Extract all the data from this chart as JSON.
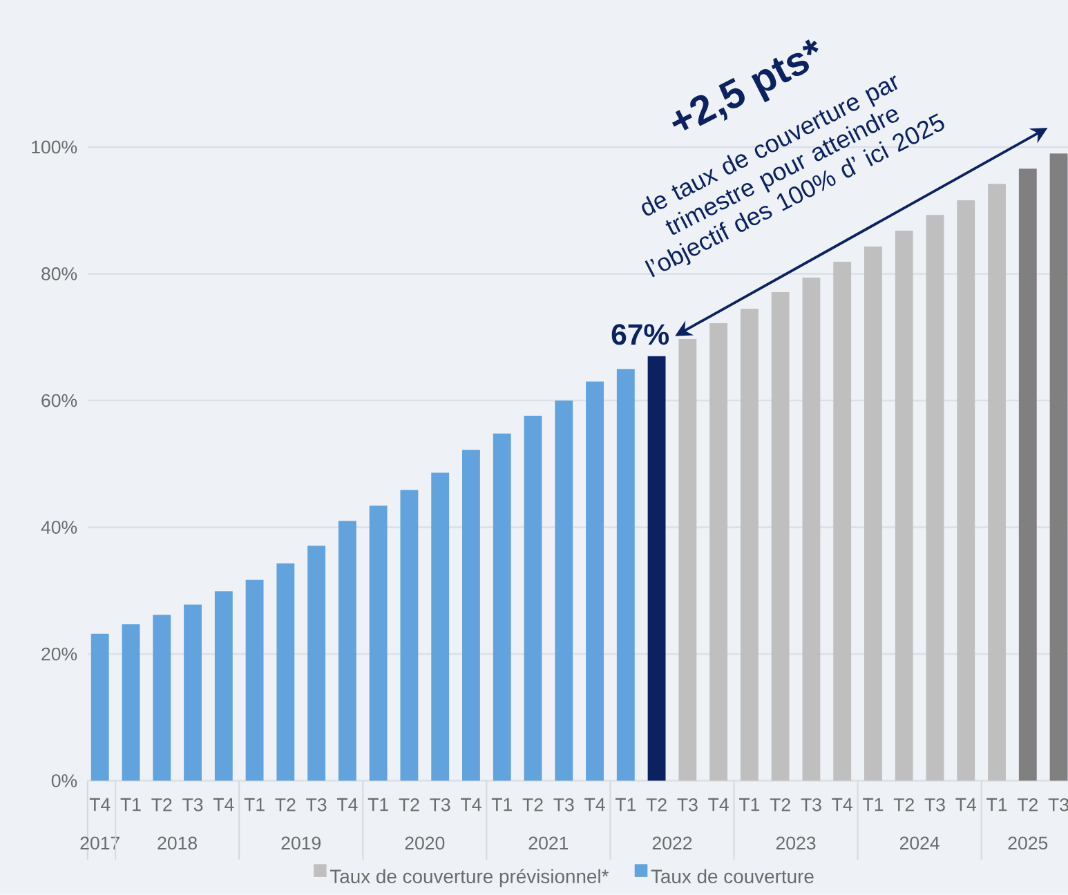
{
  "chart_data": {
    "type": "bar",
    "categories": [
      "T4",
      "T1",
      "T2",
      "T3",
      "T4",
      "T1",
      "T2",
      "T3",
      "T4",
      "T1",
      "T2",
      "T3",
      "T4",
      "T1",
      "T2",
      "T3",
      "T4",
      "T1",
      "T2",
      "T3",
      "T4",
      "T1",
      "T2",
      "T3",
      "T4",
      "T1",
      "T2",
      "T3",
      "T4",
      "T1",
      "T2",
      "T3"
    ],
    "series": [
      {
        "name": "Taux de couverture prévisionnel*",
        "color": "#bfbfbf",
        "colors": [
          null,
          null,
          null,
          null,
          null,
          null,
          null,
          null,
          null,
          null,
          null,
          null,
          null,
          null,
          null,
          null,
          null,
          null,
          null,
          "#bfbfbf",
          "#bfbfbf",
          "#bfbfbf",
          "#bfbfbf",
          "#bfbfbf",
          "#bfbfbf",
          "#bfbfbf",
          "#bfbfbf",
          "#bfbfbf",
          "#bfbfbf",
          "#bfbfbf",
          "#808080",
          "#808080"
        ],
        "values": [
          null,
          null,
          null,
          null,
          null,
          null,
          null,
          null,
          null,
          null,
          null,
          null,
          null,
          null,
          null,
          null,
          null,
          null,
          null,
          69.7,
          72.2,
          74.5,
          77.1,
          79.4,
          81.9,
          84.3,
          86.8,
          89.3,
          91.6,
          94.2,
          96.6,
          99.0
        ]
      },
      {
        "name": "Taux de couverture",
        "color": "#62a3de",
        "colors": [
          "#62a3de",
          "#62a3de",
          "#62a3de",
          "#62a3de",
          "#62a3de",
          "#62a3de",
          "#62a3de",
          "#62a3de",
          "#62a3de",
          "#62a3de",
          "#62a3de",
          "#62a3de",
          "#62a3de",
          "#62a3de",
          "#62a3de",
          "#62a3de",
          "#62a3de",
          "#62a3de",
          "#0b2160",
          null,
          null,
          null,
          null,
          null,
          null,
          null,
          null,
          null,
          null,
          null,
          null,
          null
        ],
        "values": [
          23.2,
          24.7,
          26.2,
          27.8,
          29.9,
          31.7,
          34.3,
          37.1,
          41.0,
          43.4,
          45.9,
          48.6,
          52.2,
          54.8,
          57.6,
          60.0,
          63.0,
          65.0,
          67,
          null,
          null,
          null,
          null,
          null,
          null,
          null,
          null,
          null,
          null,
          null,
          null,
          null
        ],
        "value_labels": [
          null,
          null,
          null,
          null,
          null,
          null,
          null,
          null,
          null,
          null,
          null,
          null,
          null,
          null,
          null,
          null,
          null,
          null,
          "67%",
          null,
          null,
          null,
          null,
          null,
          null,
          null,
          null,
          null,
          null,
          null,
          null,
          null
        ]
      }
    ],
    "ylim": [
      0,
      100
    ],
    "yticks": [
      {
        "value": 0,
        "label": "0%"
      },
      {
        "value": 20,
        "label": "20%"
      },
      {
        "value": 40,
        "label": "40%"
      },
      {
        "value": 60,
        "label": "60%"
      },
      {
        "value": 80,
        "label": "80%"
      },
      {
        "value": 100,
        "label": "100%"
      }
    ],
    "grid": "y",
    "legend": "bottom",
    "annotations": [
      "+2,5 pts*",
      "de taux de couverture par trimestre pour atteindre l’objectif des 100% d’ ici 2025",
      "2017",
      "2018",
      "2019",
      "2020",
      "2021",
      "2022",
      "2023",
      "2024",
      "2025"
    ]
  }
}
